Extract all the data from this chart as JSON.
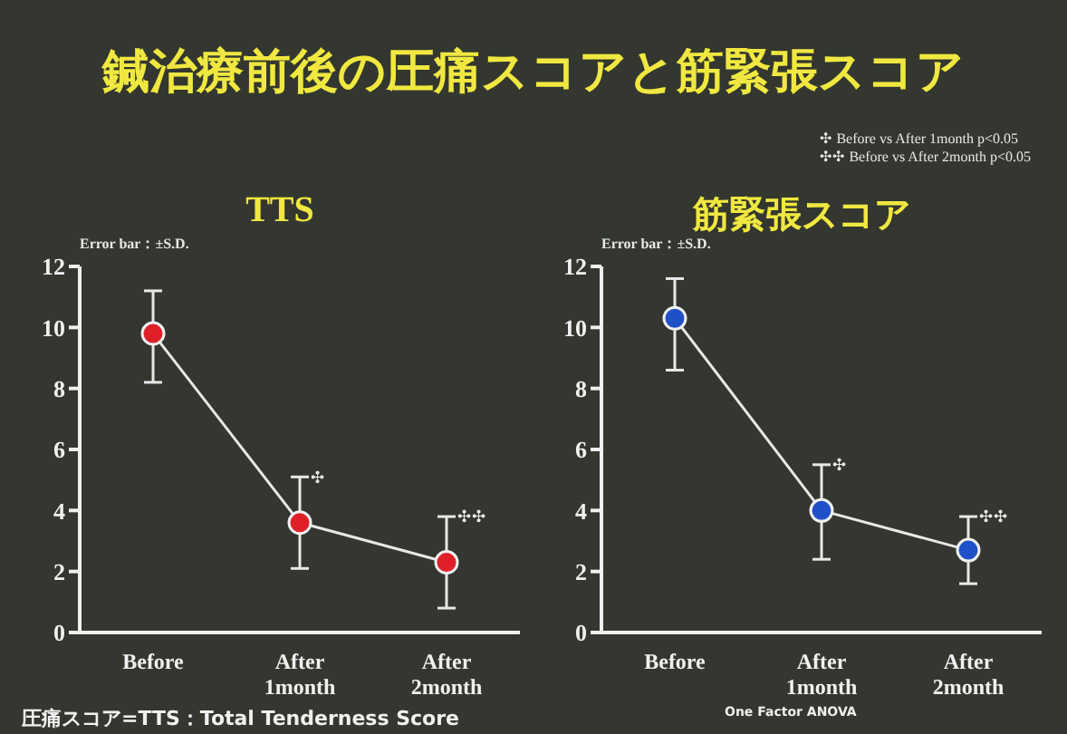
{
  "chart_data": [
    {
      "type": "other",
      "title": "鍼治療前後の圧痛スコアと筋緊張スコア",
      "annotations": [
        "✣ Before vs After 1month p<0.05",
        "✣✣ Before vs After 2month p<0.05"
      ]
    },
    {
      "type": "line",
      "title": "TTS",
      "categories": [
        "Before",
        "After 1month",
        "After 2month"
      ],
      "series": [
        {
          "color": "#e02028",
          "values": [
            9.8,
            3.6,
            2.3
          ],
          "errors": [
            [
              8.2,
              11.2
            ],
            [
              2.1,
              5.1
            ],
            [
              0.8,
              3.8
            ]
          ]
        }
      ],
      "ylim": [
        0,
        12
      ],
      "yticks": [
        0,
        2,
        4,
        6,
        8,
        10,
        12
      ],
      "grid": false,
      "marker": "circle",
      "line_style": "solid",
      "annotations": [
        "Error bar：±S.D.",
        {
          "text": "✣",
          "x": "After 1month",
          "y": 5.1
        },
        {
          "text": "✣✣",
          "x": "After 2month",
          "y": 3.8
        },
        "圧痛スコア=TTS：Total Tenderness Score"
      ]
    },
    {
      "type": "line",
      "title": "筋緊張スコア",
      "categories": [
        "Before",
        "After 1month",
        "After 2month"
      ],
      "series": [
        {
          "color": "#2050c8",
          "values": [
            10.3,
            4.0,
            2.7
          ],
          "errors": [
            [
              8.6,
              11.6
            ],
            [
              2.4,
              5.5
            ],
            [
              1.6,
              3.8
            ]
          ]
        }
      ],
      "ylim": [
        0,
        12
      ],
      "yticks": [
        0,
        2,
        4,
        6,
        8,
        10,
        12
      ],
      "grid": false,
      "marker": "circle",
      "line_style": "solid",
      "annotations": [
        "Error bar：±S.D.",
        {
          "text": "✣",
          "x": "After 1month",
          "y": 5.5
        },
        {
          "text": "✣✣",
          "x": "After 2month",
          "y": 3.8
        },
        "One Factor ANOVA"
      ]
    }
  ]
}
